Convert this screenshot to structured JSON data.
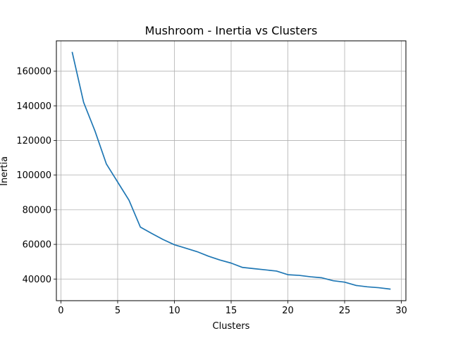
{
  "chart_data": {
    "type": "line",
    "title": "Mushroom - Inertia vs Clusters",
    "xlabel": "Clusters",
    "ylabel": "Inertia",
    "xlim": [
      -0.4,
      30.4
    ],
    "ylim": [
      27500,
      177500
    ],
    "xticks": [
      0,
      5,
      10,
      15,
      20,
      25,
      30
    ],
    "yticks": [
      40000,
      60000,
      80000,
      100000,
      120000,
      140000,
      160000
    ],
    "grid": true,
    "series": [
      {
        "color": "#1f77b4",
        "x": [
          1,
          2,
          3,
          4,
          5,
          6,
          7,
          8,
          9,
          10,
          11,
          12,
          13,
          14,
          15,
          16,
          17,
          18,
          19,
          20,
          21,
          22,
          23,
          24,
          25,
          26,
          27,
          28,
          29
        ],
        "y": [
          170800,
          142000,
          125500,
          106500,
          96000,
          85500,
          70000,
          66300,
          62800,
          59800,
          57800,
          55800,
          53200,
          51000,
          49200,
          46700,
          46000,
          45300,
          44600,
          42500,
          42100,
          41300,
          40700,
          39000,
          38200,
          36300,
          35500,
          35000,
          34200
        ]
      }
    ]
  }
}
